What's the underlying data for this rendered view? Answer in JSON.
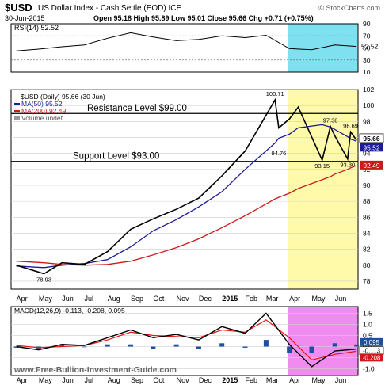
{
  "header": {
    "symbol": "$USD",
    "description": "US Dollar Index - Cash Settle (EOD) ICE",
    "watermark": "© StockCharts.com",
    "date": "30-Jun-2015",
    "ohlc": "Open 95.18 High 95.89 Low 95.01 Close 95.66 Chg +0.71 (+0.75%)"
  },
  "colors": {
    "price": "#000000",
    "ma50": "#1c1c9a",
    "ma200": "#cc1a1a",
    "rsi_highlight": "#7fe0f0",
    "price_highlight": "#fffaaa",
    "macd_highlight": "#f08cf0",
    "macd_signal": "#e01818",
    "macd_hist": "#1f4fa0",
    "rsi_fill": "#3a7a3a"
  },
  "chart_data": [
    {
      "type": "line",
      "panel": "rsi",
      "label": "RSI(14) 52.52",
      "current": 52.52,
      "levels": [
        70,
        50,
        30
      ],
      "ylim": [
        10,
        90
      ],
      "right_ticks": [
        90,
        70,
        50,
        30,
        10
      ],
      "x": [
        "2014-04",
        "2014-05",
        "2014-06",
        "2014-07",
        "2014-08",
        "2014-09",
        "2014-10",
        "2014-11",
        "2014-12",
        "2015-01",
        "2015-02",
        "2015-03",
        "2015-04",
        "2015-05",
        "2015-06",
        "2015-06-30"
      ],
      "values": [
        45,
        48,
        52,
        55,
        66,
        75,
        68,
        62,
        64,
        70,
        67,
        71,
        49,
        47,
        55,
        52.52
      ]
    },
    {
      "type": "line",
      "panel": "price",
      "legend": [
        {
          "name": "$USD (Daily) 95.66 (30 Jun)",
          "marker": "candlestick"
        },
        {
          "name": "MA(50) 95.52",
          "color": "#1c1c9a"
        },
        {
          "name": "MA(200) 92.49",
          "color": "#cc1a1a"
        },
        {
          "name": "Volume undef",
          "color": "#999999"
        }
      ],
      "ylim": [
        77,
        102
      ],
      "right_ticks": [
        78,
        80,
        82,
        84,
        86,
        88,
        90,
        92,
        94,
        96,
        98,
        100,
        102
      ],
      "annotations": [
        {
          "text": "100.71",
          "x": "2015-03-13",
          "y": 100.71
        },
        {
          "text": "97.38",
          "x": "2015-05-26",
          "y": 97.38
        },
        {
          "text": "96.69",
          "x": "2015-06-22",
          "y": 96.69
        },
        {
          "text": "94.76",
          "x": "2015-03-18",
          "y": 94.76
        },
        {
          "text": "93.15",
          "x": "2015-05-15",
          "y": 93.15
        },
        {
          "text": "93.30",
          "x": "2015-06-18",
          "y": 93.3
        },
        {
          "text": "78.93",
          "x": "2014-05-08",
          "y": 78.93
        }
      ],
      "lines": [
        {
          "text": "Resistance Level  $99.00",
          "y": 99.0
        },
        {
          "text": "Support Level  $93.00",
          "y": 93.0
        }
      ],
      "right_labels": [
        {
          "text": "95.66",
          "y": 95.66
        },
        {
          "text": "95.52",
          "y": 95.52
        },
        {
          "text": "92.49",
          "y": 92.49
        }
      ],
      "x": [
        "2014-04-01",
        "2014-05-08",
        "2014-06-01",
        "2014-07-01",
        "2014-08-01",
        "2014-09-01",
        "2014-10-01",
        "2014-11-01",
        "2014-12-01",
        "2015-01-01",
        "2015-02-01",
        "2015-03-13",
        "2015-03-18",
        "2015-04-01",
        "2015-04-13",
        "2015-05-15",
        "2015-05-26",
        "2015-06-01",
        "2015-06-18",
        "2015-06-22",
        "2015-06-30"
      ],
      "series": [
        {
          "name": "$USD",
          "values": [
            80.0,
            78.93,
            80.3,
            80.1,
            81.7,
            84.5,
            85.8,
            87.0,
            88.4,
            91.2,
            94.3,
            100.71,
            97.2,
            98.3,
            99.8,
            93.15,
            97.38,
            96.2,
            93.3,
            96.69,
            95.66
          ]
        },
        {
          "name": "MA(50)",
          "values": [
            79.9,
            79.7,
            80.0,
            80.2,
            80.7,
            82.3,
            84.3,
            85.7,
            87.3,
            89.2,
            92.0,
            95.3,
            95.9,
            96.4,
            97.2,
            97.6,
            97.3,
            97.0,
            96.1,
            95.8,
            95.52
          ]
        },
        {
          "name": "MA(200)",
          "values": [
            80.5,
            80.3,
            80.1,
            80.0,
            80.1,
            80.5,
            81.3,
            82.2,
            83.3,
            84.7,
            86.2,
            88.3,
            88.5,
            89.0,
            89.6,
            90.7,
            91.1,
            91.4,
            92.0,
            92.2,
            92.49
          ]
        }
      ]
    },
    {
      "type": "line",
      "panel": "macd",
      "label": "MACD(12,26,9) -0.113, -0.208, 0.095",
      "ylim": [
        -1.3,
        1.8
      ],
      "right_ticks": [
        1.5,
        1.0,
        0.5,
        0.0,
        -0.5,
        -1.0
      ],
      "right_labels": [
        {
          "text": "0.095",
          "y": 0.095
        },
        {
          "text": "-0.113",
          "y": -0.113
        },
        {
          "text": "-0.208",
          "y": -0.208
        }
      ],
      "x": [
        "2014-04",
        "2014-05",
        "2014-06",
        "2014-07",
        "2014-08",
        "2014-09",
        "2014-10",
        "2014-11",
        "2014-12",
        "2015-01",
        "2015-02",
        "2015-03",
        "2015-04",
        "2015-05",
        "2015-06",
        "2015-06-30"
      ],
      "series": [
        {
          "name": "MACD",
          "values": [
            0.0,
            -0.15,
            0.1,
            0.05,
            0.4,
            0.75,
            0.4,
            0.55,
            0.3,
            0.9,
            0.6,
            1.5,
            0.1,
            -0.9,
            -0.2,
            -0.113
          ]
        },
        {
          "name": "Signal",
          "values": [
            0.05,
            -0.05,
            0.0,
            0.05,
            0.3,
            0.65,
            0.5,
            0.45,
            0.4,
            0.75,
            0.65,
            1.2,
            0.4,
            -0.6,
            -0.35,
            -0.208
          ]
        },
        {
          "name": "Histogram",
          "values": [
            -0.05,
            -0.1,
            0.1,
            0.0,
            0.1,
            0.1,
            -0.1,
            0.1,
            -0.1,
            0.15,
            -0.05,
            0.3,
            -0.3,
            -0.3,
            0.15,
            0.095
          ]
        }
      ]
    }
  ],
  "x_axis_top": {
    "labels": [
      "Apr",
      "May",
      "Jun",
      "Jul",
      "Aug",
      "Sep",
      "Oct",
      "Nov",
      "Dec",
      "2015",
      "Feb",
      "Mar",
      "Apr",
      "May",
      "Jun"
    ]
  },
  "x_axis_bottom": {
    "labels": [
      "Apr",
      "May",
      "Jun",
      "Jul",
      "Aug",
      "Sep",
      "Oct",
      "Nov",
      "Dec",
      "2015",
      "Feb",
      "Mar",
      "Apr",
      "May",
      "Jun"
    ]
  },
  "footer": {
    "website": "www.Free-Bullion-Investment-Guide.com"
  }
}
